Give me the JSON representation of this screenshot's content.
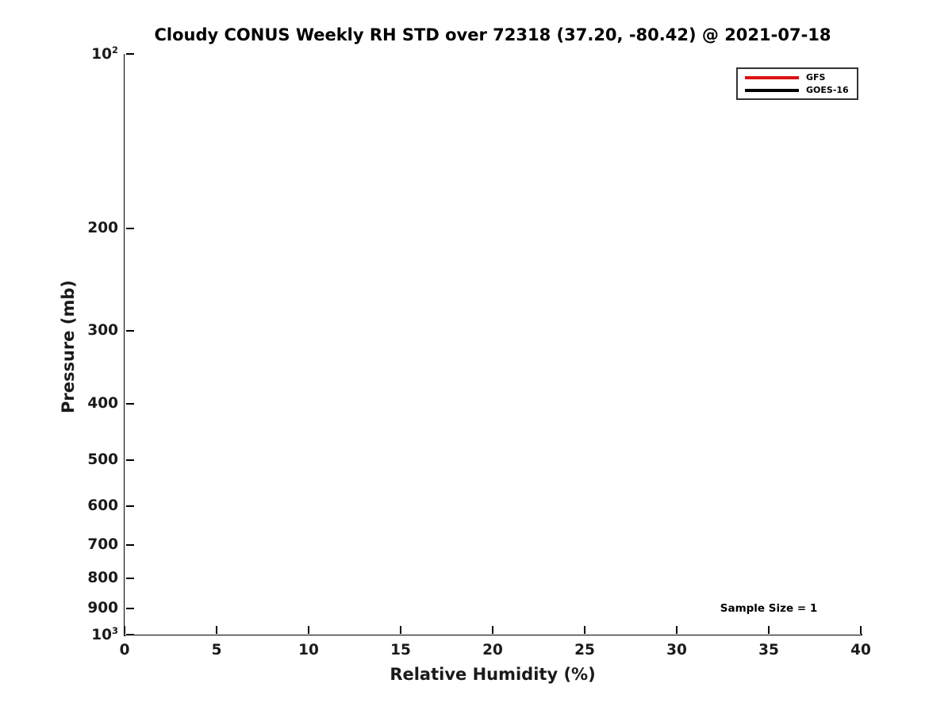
{
  "chart_data": {
    "type": "line",
    "title": "Cloudy CONUS Weekly RH STD over 72318 (37.20, -80.42) @ 2021-07-18",
    "xlabel": "Relative Humidity (%)",
    "ylabel": "Pressure (mb)",
    "xlim": [
      0,
      40
    ],
    "ylim": [
      100,
      1000
    ],
    "x_scale": "linear",
    "y_scale": "log",
    "y_direction": "pressure-increasing-downward",
    "grid": false,
    "x_ticks": {
      "values": [
        0,
        5,
        10,
        15,
        20,
        25,
        30,
        35,
        40
      ],
      "labels": [
        "0",
        "5",
        "10",
        "15",
        "20",
        "25",
        "30",
        "35",
        "40"
      ]
    },
    "y_ticks": {
      "values": [
        100,
        200,
        300,
        400,
        500,
        600,
        700,
        800,
        900,
        1000
      ],
      "labels": [
        {
          "base": "10",
          "exp": "2"
        },
        "200",
        "300",
        "400",
        "500",
        "600",
        "700",
        "800",
        "900",
        {
          "base": "10",
          "exp": "3"
        }
      ]
    },
    "legend": {
      "position": "upper-right",
      "entries": [
        {
          "label": "GFS",
          "color": "#dd1111"
        },
        {
          "label": "GOES-16",
          "color": "#000000"
        }
      ]
    },
    "annotation": {
      "text": "Sample Size = 1",
      "x": 35,
      "y": 900
    },
    "series": [
      {
        "name": "GFS",
        "color": "#dd1111",
        "points": []
      },
      {
        "name": "GOES-16",
        "color": "#000000",
        "points": []
      }
    ]
  }
}
